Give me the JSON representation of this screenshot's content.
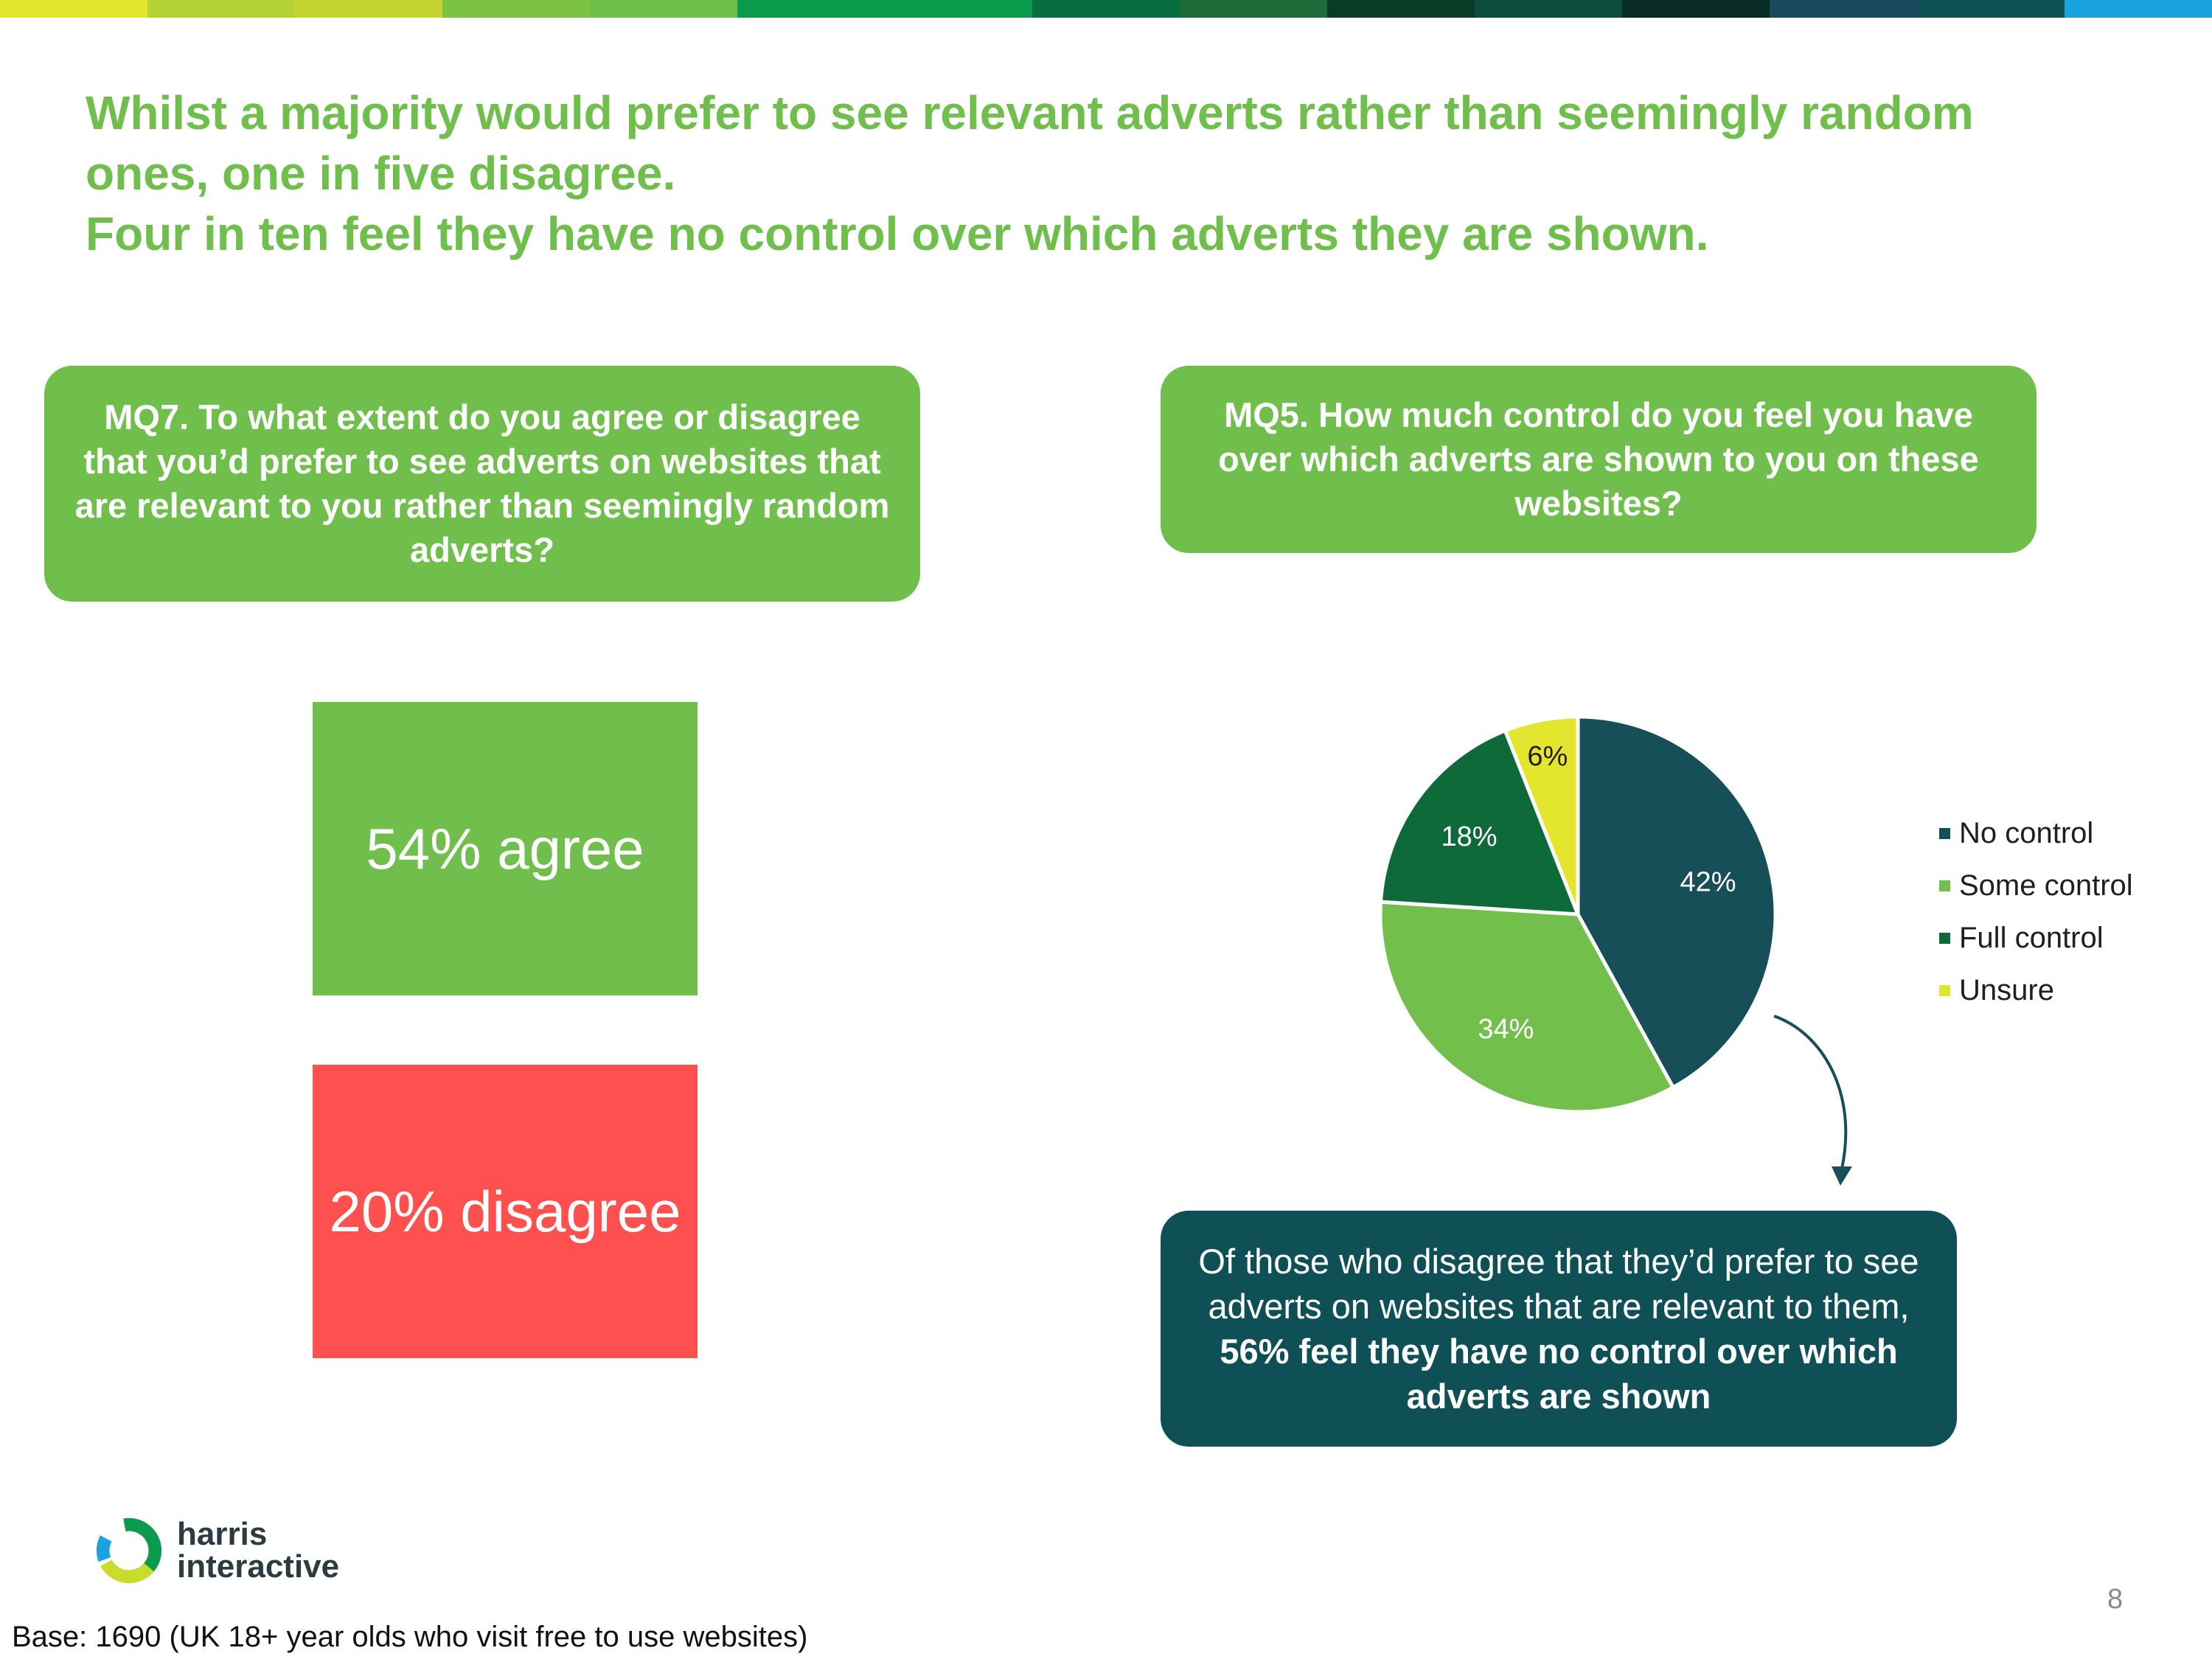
{
  "top_bar_colors": [
    "#e2e72c",
    "#b5d334",
    "#c4d531",
    "#7cc242",
    "#6fbf4b",
    "#0c9a4d",
    "#0c9a4d",
    "#086e3f",
    "#1e6a39",
    "#0a3b26",
    "#0b4d3c",
    "#082b24",
    "#174a5c",
    "#0f5056",
    "#1aa3df"
  ],
  "title": {
    "line1": "Whilst a majority would prefer to see relevant adverts rather than seemingly random",
    "line2": "ones, one in five disagree.",
    "line3": "Four in ten feel they have no control over which adverts they are shown."
  },
  "questions": {
    "left": "MQ7. To what extent do you agree or disagree that you’d prefer to see adverts on websites that are relevant to you rather than seemingly random adverts?",
    "right": "MQ5. How much control do you feel you have over which adverts are shown to you on these websites?"
  },
  "stats": {
    "agree": "54% agree",
    "disagree": "20% disagree",
    "agree_color": "#70bf4c",
    "disagree_color": "#ff5050"
  },
  "chart_data": {
    "type": "pie",
    "title": "MQ5. How much control do you feel you have over which adverts are shown to you on these websites?",
    "categories": [
      "No control",
      "Some control",
      "Full control",
      "Unsure"
    ],
    "values": [
      42,
      34,
      18,
      6
    ],
    "labels": [
      "42%",
      "34%",
      "18%",
      "6%"
    ],
    "colors": [
      "#174f58",
      "#72bf4b",
      "#0e6a39",
      "#e3e62c"
    ],
    "legend_position": "right"
  },
  "callout": {
    "text_plain": "Of those who disagree that they’d prefer to see adverts on websites that are relevant to them,",
    "text_bold": "56% feel they have no control over which adverts are shown"
  },
  "logo": {
    "line1": "harris",
    "line2": "interactive"
  },
  "page_number": "8",
  "base_note": "Base: 1690 (UK 18+ year olds who visit free to use websites)"
}
